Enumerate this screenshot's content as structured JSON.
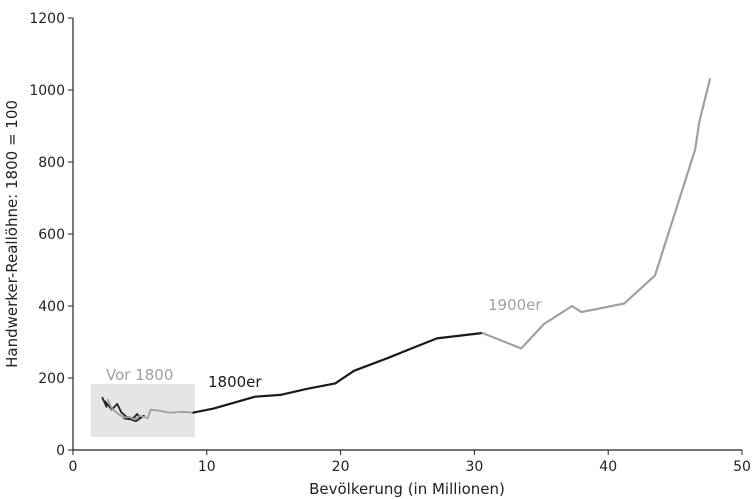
{
  "chart_data": {
    "type": "line",
    "title": "",
    "xlabel": "Bevölkerung (in Millionen)",
    "ylabel": "Handwerker-Reallöhne: 1800 = 100",
    "xlim": [
      0,
      50
    ],
    "ylim": [
      0,
      1200
    ],
    "x_ticks": [
      0,
      10,
      20,
      30,
      40,
      50
    ],
    "y_ticks": [
      0,
      200,
      400,
      600,
      800,
      1000,
      1200
    ],
    "grid": false,
    "legend": "none",
    "annotations": {
      "pre1800": "Vor 1800",
      "c1800s": "1800er",
      "c1900s": "1900er"
    },
    "colors": {
      "pre1800_dark": "#222222",
      "pre1800_light": "#a0a0a0",
      "c1800s": "#1a1a1a",
      "c1900s": "#a0a0a0",
      "pre1800_box": "#e4e5e6",
      "axis": "#222222"
    },
    "series": [
      {
        "period": "pre1800",
        "shade": "dark",
        "points": [
          [
            2.2,
            145
          ],
          [
            2.5,
            120
          ],
          [
            2.4,
            135
          ],
          [
            2.9,
            112
          ],
          [
            3.3,
            128
          ],
          [
            3.6,
            105
          ],
          [
            4.0,
            92
          ],
          [
            4.5,
            88
          ],
          [
            4.8,
            100
          ],
          [
            5.0,
            90
          ],
          [
            5.3,
            95
          ],
          [
            4.7,
            80
          ],
          [
            4.3,
            85
          ],
          [
            3.8,
            88
          ]
        ]
      },
      {
        "period": "pre1800",
        "shade": "light",
        "points": [
          [
            2.6,
            140
          ],
          [
            2.9,
            115
          ],
          [
            3.4,
            100
          ],
          [
            3.8,
            90
          ],
          [
            4.2,
            92
          ],
          [
            4.6,
            85
          ],
          [
            5.0,
            95
          ],
          [
            5.6,
            88
          ],
          [
            5.8,
            112
          ],
          [
            6.3,
            110
          ],
          [
            7.2,
            104
          ],
          [
            8.2,
            106
          ],
          [
            9.0,
            104
          ]
        ]
      },
      {
        "period": "1800s",
        "shade": "dark",
        "points": [
          [
            9.0,
            104
          ],
          [
            10.5,
            115
          ],
          [
            13.6,
            148
          ],
          [
            15.5,
            153
          ],
          [
            17.5,
            170
          ],
          [
            19.6,
            185
          ],
          [
            21.0,
            220
          ],
          [
            23.5,
            255
          ],
          [
            25.5,
            285
          ],
          [
            27.2,
            310
          ],
          [
            30.6,
            325
          ]
        ]
      },
      {
        "period": "1900s",
        "shade": "light",
        "points": [
          [
            30.6,
            325
          ],
          [
            33.5,
            282
          ],
          [
            35.2,
            350
          ],
          [
            37.3,
            400
          ],
          [
            38.0,
            383
          ],
          [
            41.2,
            407
          ],
          [
            43.5,
            485
          ],
          [
            46.5,
            835
          ],
          [
            46.8,
            910
          ],
          [
            47.6,
            1030
          ]
        ]
      }
    ]
  }
}
